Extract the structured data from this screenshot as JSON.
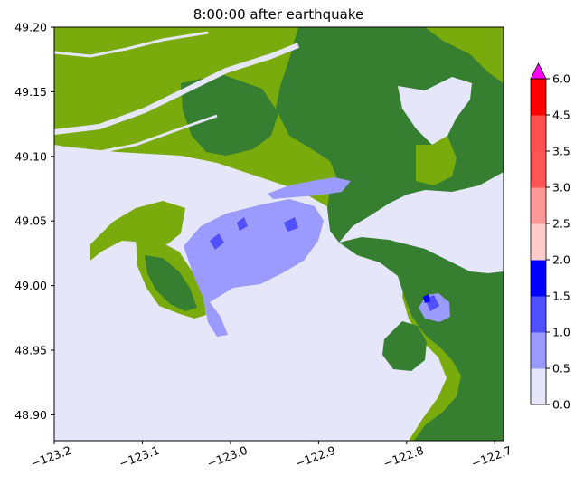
{
  "chart_data": {
    "type": "heatmap",
    "title": "8:00:00 after earthquake",
    "x_ticks": [
      "−123.2",
      "−123.1",
      "−123.0",
      "−122.9",
      "−122.8",
      "−122.7"
    ],
    "y_ticks": [
      "49.20",
      "49.15",
      "49.10",
      "49.05",
      "49.00",
      "48.95",
      "48.90"
    ],
    "xlim": [
      -123.2,
      -122.69
    ],
    "ylim": [
      48.88,
      49.2
    ],
    "colorbar": {
      "ticks": [
        "6.0",
        "4.5",
        "3.5",
        "3.0",
        "2.5",
        "2.0",
        "1.5",
        "1.0",
        "0.5",
        "0.0"
      ],
      "bins": [
        {
          "from": 0.0,
          "to": 0.5,
          "color": "#e6e6fa"
        },
        {
          "from": 0.5,
          "to": 1.0,
          "color": "#9b9bff"
        },
        {
          "from": 1.0,
          "to": 1.5,
          "color": "#5050ff"
        },
        {
          "from": 1.5,
          "to": 2.0,
          "color": "#0000ff"
        },
        {
          "from": 2.0,
          "to": 2.5,
          "color": "#ffcccc"
        },
        {
          "from": 2.5,
          "to": 3.0,
          "color": "#ff9999"
        },
        {
          "from": 3.0,
          "to": 3.5,
          "color": "#ff5555"
        },
        {
          "from": 3.5,
          "to": 4.5,
          "color": "#ff5050"
        },
        {
          "from": 4.5,
          "to": 6.0,
          "color": "#ff0000"
        }
      ],
      "extend_color": "#ff00ff"
    },
    "colors": {
      "water": "#e6e6fa",
      "lowland": "#7aab0c",
      "upland": "#367f31",
      "flood_light": "#9b9bff",
      "flood_mid": "#5050ff",
      "flood_deep": "#0000ff"
    }
  }
}
